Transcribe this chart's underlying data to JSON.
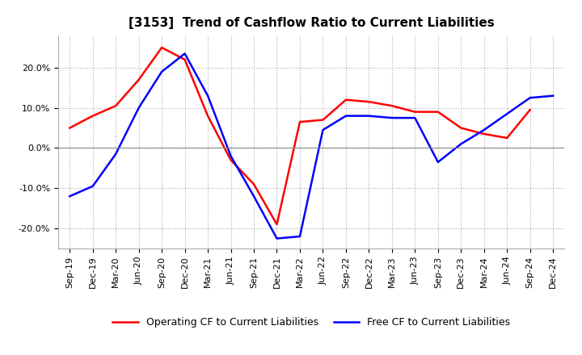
{
  "title": "[3153]  Trend of Cashflow Ratio to Current Liabilities",
  "x_labels": [
    "Sep-19",
    "Dec-19",
    "Mar-20",
    "Jun-20",
    "Sep-20",
    "Dec-20",
    "Mar-21",
    "Jun-21",
    "Sep-21",
    "Dec-21",
    "Mar-22",
    "Jun-22",
    "Sep-22",
    "Dec-22",
    "Mar-23",
    "Jun-23",
    "Sep-23",
    "Dec-23",
    "Mar-24",
    "Jun-24",
    "Sep-24",
    "Dec-24"
  ],
  "operating_cf": [
    5.0,
    8.0,
    10.5,
    17.0,
    25.0,
    22.0,
    8.0,
    -3.0,
    -9.0,
    -19.0,
    6.5,
    7.0,
    12.0,
    11.5,
    10.5,
    9.0,
    9.0,
    5.0,
    3.5,
    2.5,
    9.5,
    null
  ],
  "free_cf": [
    -12.0,
    -9.5,
    -1.5,
    10.0,
    19.0,
    23.5,
    13.0,
    -2.0,
    -12.0,
    -22.5,
    -22.0,
    4.5,
    8.0,
    8.0,
    7.5,
    7.5,
    -3.5,
    1.0,
    4.5,
    8.5,
    12.5,
    13.0
  ],
  "ylim": [
    -25,
    28
  ],
  "yticks": [
    -20,
    -10,
    0,
    10,
    20
  ],
  "operating_color": "#FF0000",
  "free_color": "#0000FF",
  "grid_color": "#AAAAAA",
  "background_color": "#FFFFFF",
  "title_fontsize": 11,
  "tick_fontsize": 8,
  "legend_labels": [
    "Operating CF to Current Liabilities",
    "Free CF to Current Liabilities"
  ]
}
